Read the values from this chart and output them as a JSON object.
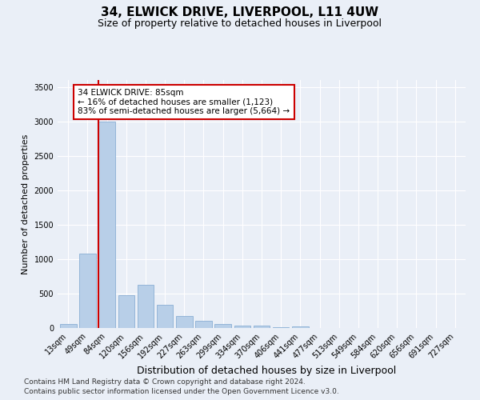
{
  "title1": "34, ELWICK DRIVE, LIVERPOOL, L11 4UW",
  "title2": "Size of property relative to detached houses in Liverpool",
  "xlabel": "Distribution of detached houses by size in Liverpool",
  "ylabel": "Number of detached properties",
  "categories": [
    "13sqm",
    "49sqm",
    "84sqm",
    "120sqm",
    "156sqm",
    "192sqm",
    "227sqm",
    "263sqm",
    "299sqm",
    "334sqm",
    "370sqm",
    "406sqm",
    "441sqm",
    "477sqm",
    "513sqm",
    "549sqm",
    "584sqm",
    "620sqm",
    "656sqm",
    "691sqm",
    "727sqm"
  ],
  "values": [
    55,
    1080,
    3000,
    480,
    630,
    340,
    170,
    100,
    60,
    40,
    30,
    10,
    25,
    5,
    2,
    1,
    0,
    0,
    0,
    0,
    0
  ],
  "bar_color": "#b8cfe8",
  "bar_edge_color": "#8aafd4",
  "vline_color": "#cc0000",
  "annotation_text": "34 ELWICK DRIVE: 85sqm\n← 16% of detached houses are smaller (1,123)\n83% of semi-detached houses are larger (5,664) →",
  "annotation_box_color": "white",
  "annotation_box_edge": "#cc0000",
  "ylim": [
    0,
    3600
  ],
  "yticks": [
    0,
    500,
    1000,
    1500,
    2000,
    2500,
    3000,
    3500
  ],
  "background_color": "#eaeff7",
  "plot_bg_color": "#eaeff7",
  "footer1": "Contains HM Land Registry data © Crown copyright and database right 2024.",
  "footer2": "Contains public sector information licensed under the Open Government Licence v3.0.",
  "title1_fontsize": 11,
  "title2_fontsize": 9,
  "xlabel_fontsize": 9,
  "ylabel_fontsize": 8,
  "tick_fontsize": 7,
  "annotation_fontsize": 7.5,
  "footer_fontsize": 6.5
}
